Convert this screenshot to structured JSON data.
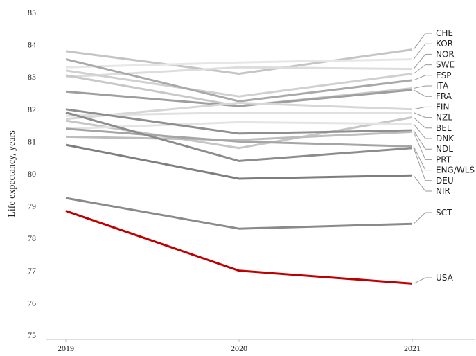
{
  "chart_data": {
    "type": "line",
    "ylabel": "Life expectancy, years",
    "xlabel": "",
    "title": "",
    "categories": [
      "2019",
      "2020",
      "2021"
    ],
    "ylim": [
      75,
      85
    ],
    "y_ticks": [
      "75",
      "76",
      "77",
      "78",
      "79",
      "80",
      "81",
      "82",
      "83",
      "84",
      "85"
    ],
    "grid": false,
    "legend": "direct labels at right end of lines",
    "series": [
      {
        "name": "CHE",
        "values": [
          83.8,
          83.1,
          83.85
        ],
        "color": "#c4c4c4"
      },
      {
        "name": "KOR",
        "values": [
          83.3,
          83.45,
          83.55
        ],
        "color": "#e6e6e6"
      },
      {
        "name": "NOR",
        "values": [
          83.0,
          83.3,
          83.25
        ],
        "color": "#dddddd"
      },
      {
        "name": "SWE",
        "values": [
          83.2,
          82.4,
          83.1
        ],
        "color": "#d0d0d0"
      },
      {
        "name": "ESP",
        "values": [
          83.55,
          82.25,
          82.9
        ],
        "color": "#a9a9a9"
      },
      {
        "name": "ITA",
        "values": [
          83.05,
          82.1,
          82.65
        ],
        "color": "#c8c8c8"
      },
      {
        "name": "FRA",
        "values": [
          82.55,
          82.1,
          82.6
        ],
        "color": "#9e9e9e"
      },
      {
        "name": "FIN",
        "values": [
          81.7,
          82.2,
          82.0
        ],
        "color": "#d6d6d6"
      },
      {
        "name": "NZL",
        "values": [
          81.8,
          81.9,
          81.9
        ],
        "color": "#e0e0e0"
      },
      {
        "name": "BEL",
        "values": [
          81.65,
          80.8,
          81.75
        ],
        "color": "#c6c6c6"
      },
      {
        "name": "DNK",
        "values": [
          81.4,
          81.6,
          81.55
        ],
        "color": "#e4e4e4"
      },
      {
        "name": "NDL",
        "values": [
          82.0,
          81.25,
          81.35
        ],
        "color": "#8f8f8f"
      },
      {
        "name": "PRT",
        "values": [
          81.15,
          81.05,
          81.3
        ],
        "color": "#bdbdbd"
      },
      {
        "name": "ENG/WLS",
        "values": [
          81.4,
          81.0,
          80.85
        ],
        "color": "#a5a5a5"
      },
      {
        "name": "DEU",
        "values": [
          81.9,
          80.4,
          80.8
        ],
        "color": "#8c8c8c"
      },
      {
        "name": "NIR",
        "values": [
          80.9,
          79.85,
          79.95
        ],
        "color": "#7e7e7e"
      },
      {
        "name": "SCT",
        "values": [
          79.25,
          78.3,
          78.45
        ],
        "color": "#8a8a8a"
      },
      {
        "name": "USA",
        "values": [
          78.85,
          77.0,
          76.6
        ],
        "color": "#c00000"
      }
    ]
  }
}
